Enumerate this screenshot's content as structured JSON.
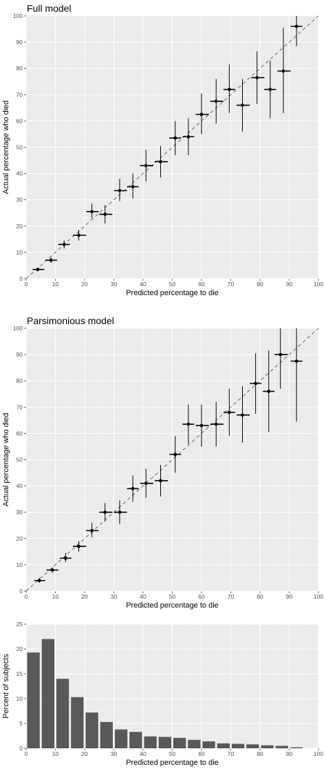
{
  "chart_data": [
    {
      "type": "scatter",
      "title": "Full model",
      "xlabel": "Predicted percentage to die",
      "ylabel": "Actual percentage who died",
      "xlim": [
        0,
        100
      ],
      "ylim": [
        0,
        100
      ],
      "xticks": [
        0,
        10,
        20,
        30,
        40,
        50,
        60,
        70,
        80,
        90,
        100
      ],
      "yticks": [
        0,
        10,
        20,
        30,
        40,
        50,
        60,
        70,
        80,
        90,
        100
      ],
      "grid": true,
      "reference_line": "y = x (dashed)",
      "points": [
        {
          "x": 4,
          "y": 3.5,
          "xlo": 2.2,
          "xhi": 6.2,
          "ylo": 2.8,
          "yhi": 4.2
        },
        {
          "x": 8.5,
          "y": 7,
          "xlo": 6.6,
          "xhi": 10.6,
          "ylo": 6,
          "yhi": 8
        },
        {
          "x": 13,
          "y": 13,
          "xlo": 11,
          "xhi": 15,
          "ylo": 11.5,
          "yhi": 14.5
        },
        {
          "x": 18,
          "y": 16.5,
          "xlo": 16,
          "xhi": 20.5,
          "ylo": 14.5,
          "yhi": 18.5
        },
        {
          "x": 22.5,
          "y": 25.5,
          "xlo": 20.6,
          "xhi": 24.8,
          "ylo": 23,
          "yhi": 28.5
        },
        {
          "x": 27,
          "y": 24.5,
          "xlo": 25,
          "xhi": 29.5,
          "ylo": 21,
          "yhi": 28
        },
        {
          "x": 32,
          "y": 33.5,
          "xlo": 30,
          "xhi": 34.5,
          "ylo": 29.5,
          "yhi": 38
        },
        {
          "x": 36.5,
          "y": 35,
          "xlo": 34.5,
          "xhi": 38.5,
          "ylo": 30.5,
          "yhi": 40
        },
        {
          "x": 41,
          "y": 43,
          "xlo": 39,
          "xhi": 43.5,
          "ylo": 37,
          "yhi": 49
        },
        {
          "x": 46,
          "y": 44.5,
          "xlo": 44,
          "xhi": 48.5,
          "ylo": 38.5,
          "yhi": 50.5
        },
        {
          "x": 51,
          "y": 53.5,
          "xlo": 49,
          "xhi": 53,
          "ylo": 47,
          "yhi": 60
        },
        {
          "x": 55.5,
          "y": 54,
          "xlo": 53.5,
          "xhi": 57.5,
          "ylo": 47,
          "yhi": 61
        },
        {
          "x": 60,
          "y": 62.5,
          "xlo": 58,
          "xhi": 62.5,
          "ylo": 55,
          "yhi": 70.5
        },
        {
          "x": 65,
          "y": 67.5,
          "xlo": 63,
          "xhi": 67.5,
          "ylo": 59,
          "yhi": 76
        },
        {
          "x": 69.5,
          "y": 72,
          "xlo": 67.5,
          "xhi": 71.5,
          "ylo": 63,
          "yhi": 81.5
        },
        {
          "x": 74,
          "y": 66,
          "xlo": 72,
          "xhi": 76.5,
          "ylo": 56,
          "yhi": 76
        },
        {
          "x": 79,
          "y": 76.5,
          "xlo": 77,
          "xhi": 81.5,
          "ylo": 66.5,
          "yhi": 86.5
        },
        {
          "x": 83.5,
          "y": 72,
          "xlo": 81.5,
          "xhi": 85.5,
          "ylo": 61,
          "yhi": 83
        },
        {
          "x": 88,
          "y": 79,
          "xlo": 86,
          "xhi": 90.5,
          "ylo": 63,
          "yhi": 95.5
        },
        {
          "x": 92.5,
          "y": 96,
          "xlo": 90.5,
          "xhi": 94.5,
          "ylo": 88.5,
          "yhi": 100
        }
      ]
    },
    {
      "type": "scatter",
      "title": "Parsimonious model",
      "xlabel": "Predicted percentage to die",
      "ylabel": "Actual percentage who died",
      "xlim": [
        0,
        100
      ],
      "ylim": [
        0,
        100
      ],
      "xticks": [
        0,
        10,
        20,
        30,
        40,
        50,
        60,
        70,
        80,
        90,
        100
      ],
      "yticks": [
        0,
        10,
        20,
        30,
        40,
        50,
        60,
        70,
        80,
        90,
        100
      ],
      "grid": true,
      "reference_line": "y = x (dashed)",
      "points": [
        {
          "x": 4.5,
          "y": 4,
          "xlo": 2.8,
          "xhi": 6.5,
          "ylo": 3.2,
          "yhi": 5
        },
        {
          "x": 9,
          "y": 8,
          "xlo": 7,
          "xhi": 11,
          "ylo": 7,
          "yhi": 9
        },
        {
          "x": 13.5,
          "y": 12.5,
          "xlo": 11.5,
          "xhi": 15.5,
          "ylo": 11,
          "yhi": 14.5
        },
        {
          "x": 18,
          "y": 17,
          "xlo": 16,
          "xhi": 20.5,
          "ylo": 15,
          "yhi": 19
        },
        {
          "x": 22.5,
          "y": 23,
          "xlo": 20.5,
          "xhi": 24.8,
          "ylo": 20.5,
          "yhi": 26
        },
        {
          "x": 27,
          "y": 30,
          "xlo": 25,
          "xhi": 29.5,
          "ylo": 26.5,
          "yhi": 33.5
        },
        {
          "x": 32,
          "y": 30,
          "xlo": 30,
          "xhi": 34.5,
          "ylo": 25.5,
          "yhi": 34.5
        },
        {
          "x": 36.5,
          "y": 39,
          "xlo": 34.5,
          "xhi": 38.5,
          "ylo": 34,
          "yhi": 44
        },
        {
          "x": 41,
          "y": 41,
          "xlo": 39,
          "xhi": 43.5,
          "ylo": 35.5,
          "yhi": 46.5
        },
        {
          "x": 46,
          "y": 42,
          "xlo": 44,
          "xhi": 48.5,
          "ylo": 36,
          "yhi": 48
        },
        {
          "x": 51,
          "y": 52,
          "xlo": 49,
          "xhi": 53,
          "ylo": 45,
          "yhi": 59
        },
        {
          "x": 55.5,
          "y": 63.5,
          "xlo": 53.5,
          "xhi": 57.5,
          "ylo": 56,
          "yhi": 71
        },
        {
          "x": 60,
          "y": 63,
          "xlo": 58,
          "xhi": 62.5,
          "ylo": 55,
          "yhi": 71
        },
        {
          "x": 65,
          "y": 63.5,
          "xlo": 63,
          "xhi": 67.5,
          "ylo": 55,
          "yhi": 72
        },
        {
          "x": 69.5,
          "y": 68,
          "xlo": 67.5,
          "xhi": 71.5,
          "ylo": 59,
          "yhi": 77
        },
        {
          "x": 74,
          "y": 67,
          "xlo": 72,
          "xhi": 76.5,
          "ylo": 56.5,
          "yhi": 78
        },
        {
          "x": 78.5,
          "y": 79,
          "xlo": 76.5,
          "xhi": 80.5,
          "ylo": 67.5,
          "yhi": 90.5
        },
        {
          "x": 83,
          "y": 76,
          "xlo": 81,
          "xhi": 85,
          "ylo": 60.5,
          "yhi": 91.5
        },
        {
          "x": 87,
          "y": 90,
          "xlo": 85,
          "xhi": 89.5,
          "ylo": 77,
          "yhi": 100
        },
        {
          "x": 92.5,
          "y": 87.5,
          "xlo": 90.5,
          "xhi": 94.5,
          "ylo": 64.5,
          "yhi": 100
        }
      ]
    },
    {
      "type": "bar",
      "xlabel": "Predicted percentage to die",
      "ylabel": "Percent of subjects",
      "xlim": [
        0,
        100
      ],
      "ylim": [
        0,
        25
      ],
      "xticks": [
        0,
        10,
        20,
        30,
        40,
        50,
        60,
        70,
        80,
        90,
        100
      ],
      "yticks": [
        0,
        5,
        10,
        15,
        20,
        25
      ],
      "grid": true,
      "bins": [
        2.5,
        7.5,
        12.5,
        17.5,
        22.5,
        27.5,
        32.5,
        37.5,
        42.5,
        47.5,
        52.5,
        57.5,
        62.5,
        67.5,
        72.5,
        77.5,
        82.5,
        87.5,
        92.5
      ],
      "values": [
        19.3,
        22,
        14,
        10.3,
        7.2,
        5.3,
        3.8,
        3.3,
        2.4,
        2.3,
        2.1,
        1.7,
        1.4,
        1.0,
        0.9,
        0.8,
        0.6,
        0.5,
        0.2
      ]
    }
  ]
}
